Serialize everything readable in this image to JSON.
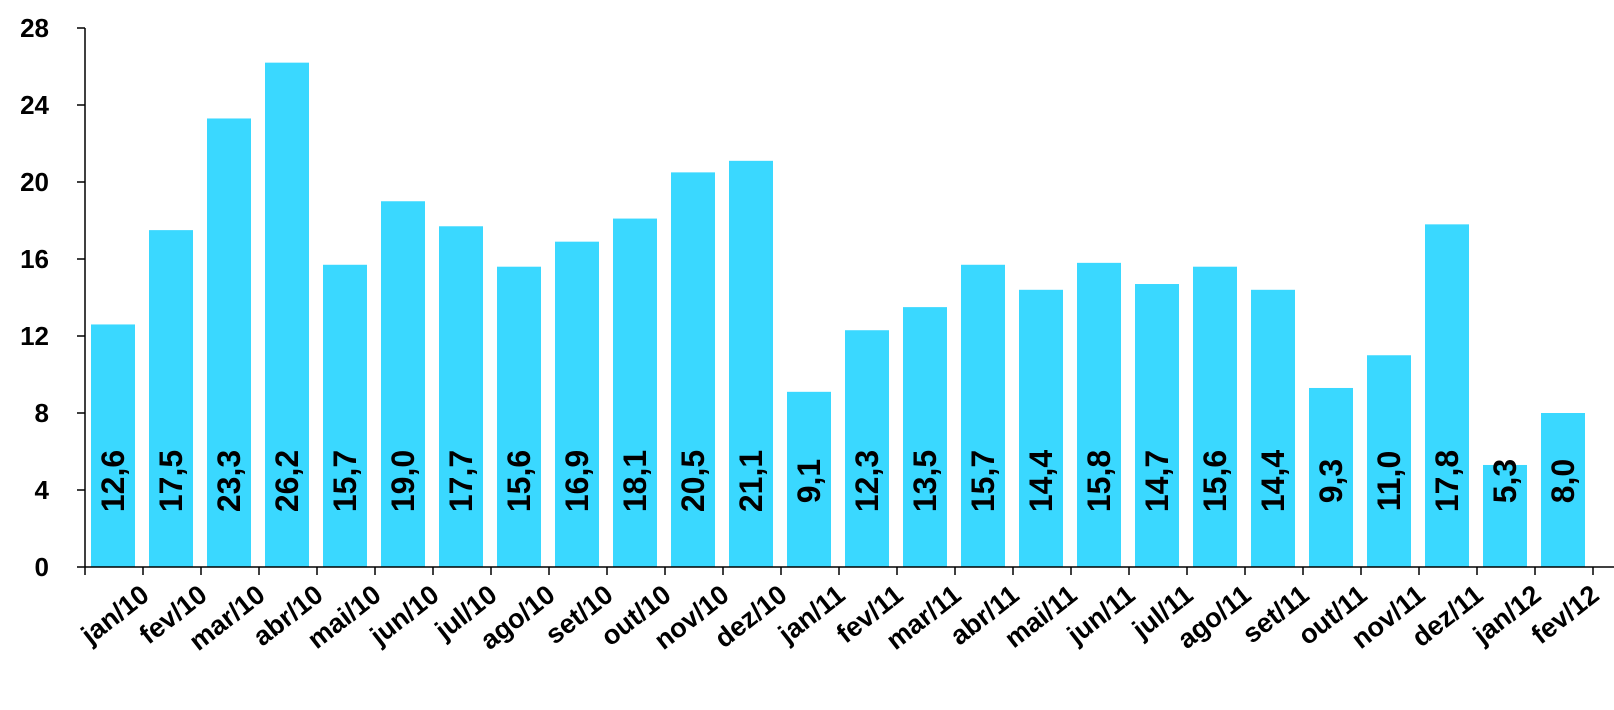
{
  "chart_data": {
    "type": "bar",
    "title": "",
    "xlabel": "",
    "ylabel": "",
    "ylim": [
      0,
      28
    ],
    "yticks": [
      0,
      4,
      8,
      12,
      16,
      20,
      24,
      28
    ],
    "grid": false,
    "legend": "none",
    "bar_color": "#3AD8FF",
    "categories": [
      "jan/10",
      "fev/10",
      "mar/10",
      "abr/10",
      "mai/10",
      "jun/10",
      "jul/10",
      "ago/10",
      "set/10",
      "out/10",
      "nov/10",
      "dez/10",
      "jan/11",
      "fev/11",
      "mar/11",
      "abr/11",
      "mai/11",
      "jun/11",
      "jul/11",
      "ago/11",
      "set/11",
      "out/11",
      "nov/11",
      "dez/11",
      "jan/12",
      "fev/12"
    ],
    "values": [
      12.6,
      17.5,
      23.3,
      26.2,
      15.7,
      19.0,
      17.7,
      15.6,
      16.9,
      18.1,
      20.5,
      21.1,
      9.1,
      12.3,
      13.5,
      15.7,
      14.4,
      15.8,
      14.7,
      15.6,
      14.4,
      9.3,
      11.0,
      17.8,
      5.3,
      8.0
    ],
    "data_labels": [
      "12,6",
      "17,5",
      "23,3",
      "26,2",
      "15,7",
      "19,0",
      "17,7",
      "15,6",
      "16,9",
      "18,1",
      "20,5",
      "21,1",
      "9,1",
      "12,3",
      "13,5",
      "15,7",
      "14,4",
      "15,8",
      "14,7",
      "15,6",
      "14,4",
      "9,3",
      "11,0",
      "17,8",
      "5,3",
      "8,0"
    ]
  }
}
